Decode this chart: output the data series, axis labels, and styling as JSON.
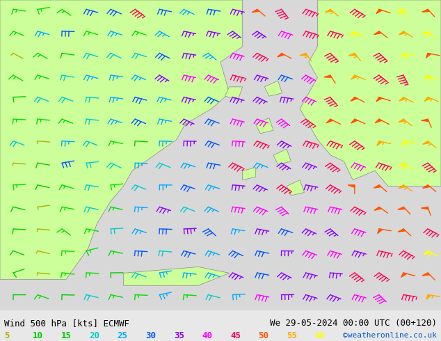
{
  "title_left": "Wind 500 hPa [kts] ECMWF",
  "title_right": "We 29-05-2024 00:00 UTC (00+120)",
  "credit": "©weatheronline.co.uk",
  "legend_values": [
    5,
    10,
    15,
    20,
    25,
    30,
    35,
    40,
    45,
    50,
    55,
    60
  ],
  "legend_colors": [
    "#b0b000",
    "#00cc00",
    "#00cc00",
    "#00cccc",
    "#00aaff",
    "#0055ff",
    "#8800ff",
    "#ff00ff",
    "#ff0055",
    "#ff5500",
    "#ffaa00",
    "#ffff00"
  ],
  "bg_color": "#e8e8e8",
  "map_bg": "#c8c8c8",
  "land_color": "#ccff99",
  "sea_color": "#ffffff",
  "wind_colors": {
    "5": "#b0b000",
    "10": "#00cc00",
    "15": "#00cc00",
    "20": "#00cccc",
    "25": "#00aaff",
    "30": "#0055ff",
    "35": "#8800ff",
    "40": "#ff00ff",
    "45": "#ff0055",
    "50": "#ff5500",
    "55": "#ffaa00",
    "60": "#ffff00"
  },
  "figsize": [
    6.34,
    4.9
  ],
  "dpi": 100
}
